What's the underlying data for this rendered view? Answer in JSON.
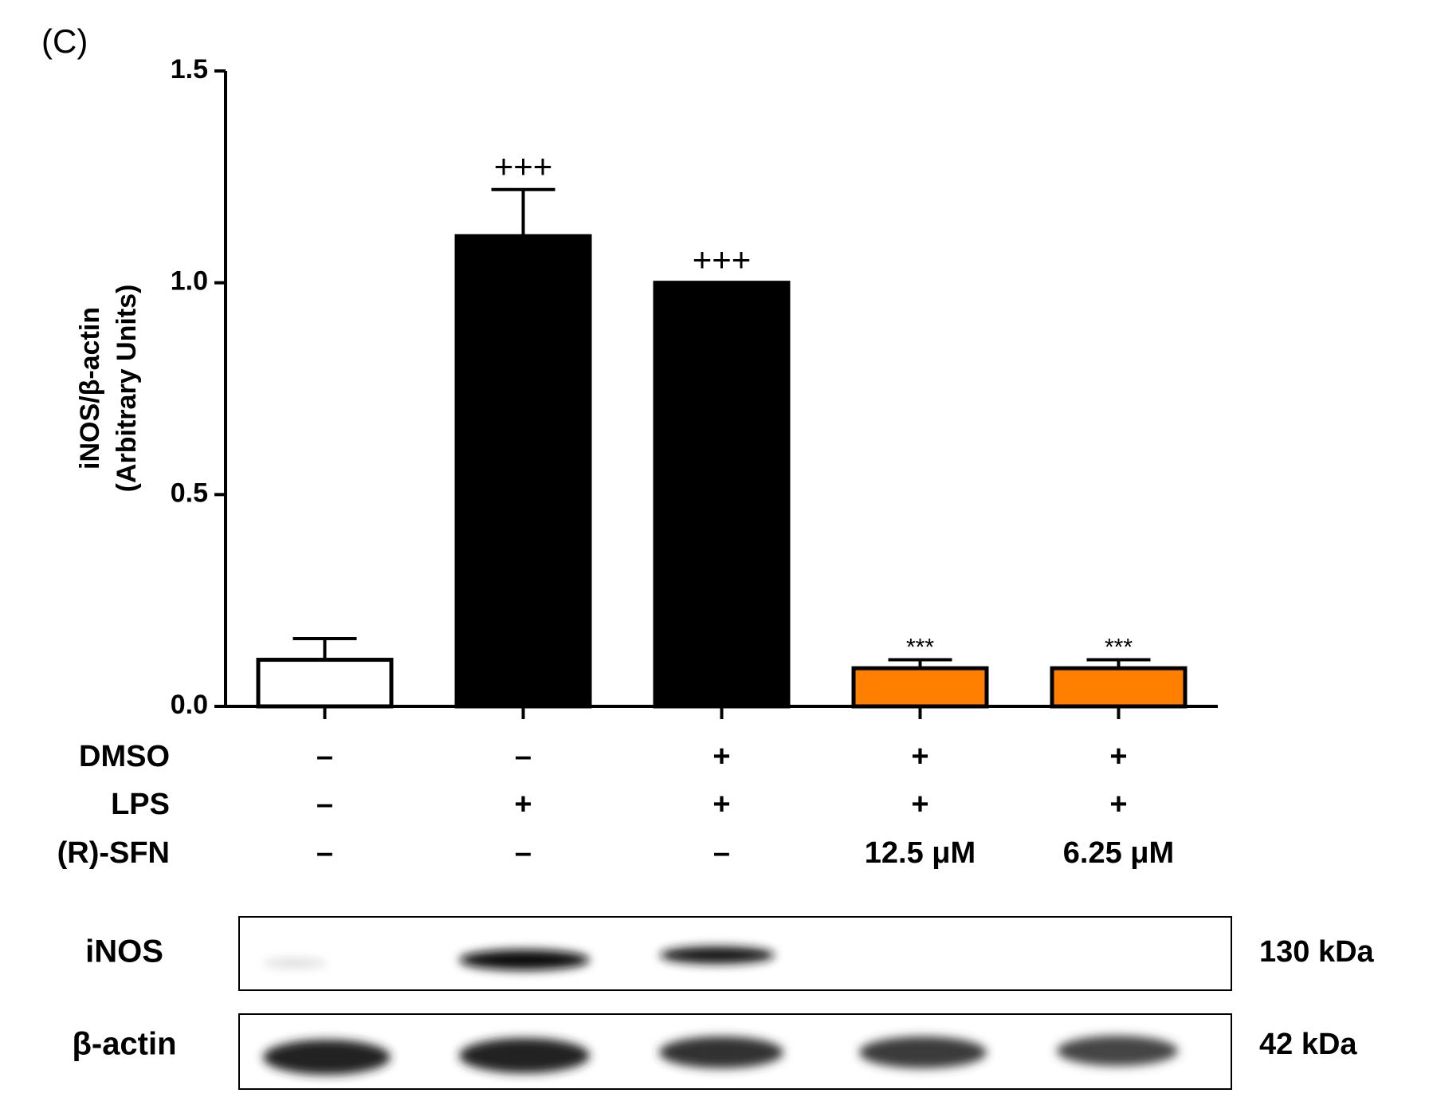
{
  "chart_data": {
    "type": "bar",
    "panel_label": "(C)",
    "y_label": [
      "iNOS/β-actin",
      "(Arbitrary Units)"
    ],
    "categories": [
      null,
      null,
      null,
      null,
      null
    ],
    "values": [
      0.11,
      1.11,
      1.0,
      0.09,
      0.09
    ],
    "errors": [
      0.05,
      0.11,
      0,
      0.02,
      0.02
    ],
    "colors": [
      "#ffffff",
      "#000000",
      "#000000",
      "#ff8000",
      "#ff8000"
    ],
    "annotations": [
      null,
      "+++",
      "+++",
      "***",
      "***"
    ],
    "ylim": [
      0,
      1.5
    ],
    "yticks": [
      {
        "value": 0,
        "label": "0.0"
      },
      {
        "value": 0.5,
        "label": "0.5"
      },
      {
        "value": 1,
        "label": "1.0"
      },
      {
        "value": 1.5,
        "label": "1.5"
      }
    ],
    "treatments": [
      {
        "label": "DMSO",
        "cells": [
          "–",
          "–",
          "+",
          "+",
          "+"
        ]
      },
      {
        "label": "LPS",
        "cells": [
          "–",
          "+",
          "+",
          "+",
          "+"
        ]
      },
      {
        "label": "(R)-SFN",
        "cells": [
          "–",
          "–",
          "–",
          "12.5 μM",
          "6.25 μM"
        ]
      }
    ],
    "blots": [
      {
        "label": "iNOS",
        "size": "130 kDa"
      },
      {
        "label": "β-actin",
        "size": "42 kDa"
      }
    ]
  }
}
